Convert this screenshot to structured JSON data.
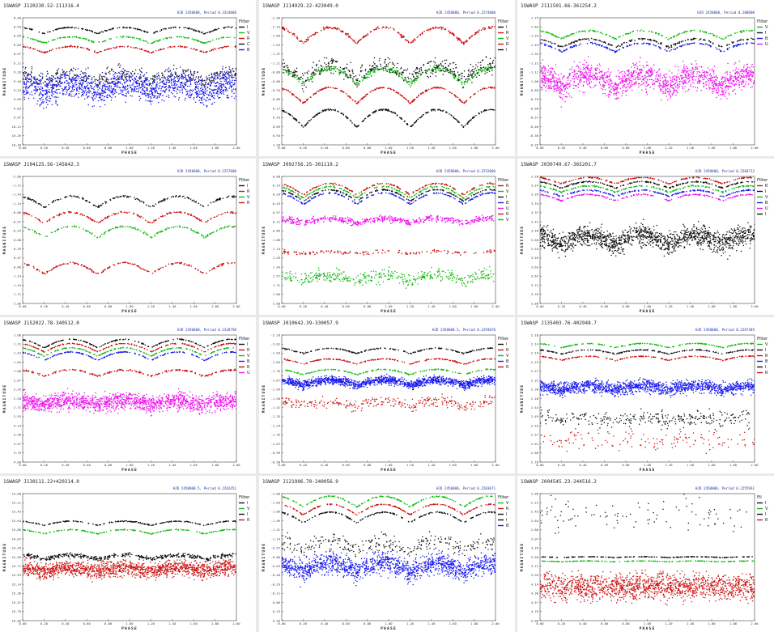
{
  "palette": {
    "I": "#111111",
    "R": "#cc1111",
    "V": "#11bb11",
    "B": "#1a1aee",
    "U": "#ee11ee",
    "C": "#111111"
  },
  "chart_data": [
    {
      "type": "scatter",
      "title": "1SWASP J120230.52-211316.4",
      "subtitle": "HJD 2450000, Period 0.3314000",
      "xlabel": "PHASE",
      "ylabel": "MAGNITUDE",
      "xlim": [
        0.0,
        2.0
      ],
      "ylim": [
        8.4,
        10.4
      ],
      "legend_title": "Filter",
      "legend_position": "right",
      "series": [
        {
          "name": "I",
          "center": 8.6,
          "amplitude": 0.1,
          "scatter": 0.01,
          "n": 200
        },
        {
          "name": "V",
          "center": 8.75,
          "amplitude": 0.1,
          "scatter": 0.01,
          "n": 200
        },
        {
          "name": "R",
          "center": 8.9,
          "amplitude": 0.1,
          "scatter": 0.01,
          "n": 200
        },
        {
          "name": "C",
          "center": 9.35,
          "amplitude": 0.15,
          "scatter": 0.12,
          "n": 400
        },
        {
          "name": "B",
          "center": 9.5,
          "amplitude": 0.15,
          "scatter": 0.22,
          "n": 1500
        }
      ]
    },
    {
      "type": "scatter",
      "title": "1SWASP J114929.22-423049.0",
      "subtitle": "HJD 2450000, Period 0.2274000",
      "xlabel": "PHASE",
      "ylabel": "MAGNITUDE",
      "xlim": [
        0.0,
        2.0
      ],
      "ylim": [
        -2.4,
        1.2
      ],
      "legend_title": "Filter",
      "legend_position": "right",
      "series": [
        {
          "name": "I",
          "center": 0.45,
          "amplitude": 0.5,
          "scatter": 0.02,
          "n": 300
        },
        {
          "name": "R",
          "center": -1.9,
          "amplitude": 0.45,
          "scatter": 0.04,
          "n": 300
        },
        {
          "name": "V",
          "center": -0.75,
          "amplitude": 0.45,
          "scatter": 0.08,
          "n": 400
        },
        {
          "name": "R",
          "center": -0.2,
          "amplitude": 0.45,
          "scatter": 0.02,
          "n": 300
        },
        {
          "name": "I",
          "center": -0.85,
          "amplitude": 0.4,
          "scatter": 0.25,
          "n": 450
        }
      ]
    },
    {
      "type": "scatter",
      "title": "1SWASP J111501.66-361254.2",
      "subtitle": "HJD 2450000, Period 0.200000",
      "xlabel": "PHASE",
      "ylabel": "MAGNITUDE",
      "xlim": [
        0.0,
        2.0
      ],
      "ylim": [
        -1.75,
        -0.25
      ],
      "legend_title": "Filter",
      "legend_position": "right",
      "series": [
        {
          "name": "V",
          "center": -1.55,
          "amplitude": 0.1,
          "scatter": 0.01,
          "n": 200
        },
        {
          "name": "I",
          "center": -1.45,
          "amplitude": 0.1,
          "scatter": 0.01,
          "n": 200
        },
        {
          "name": "B",
          "center": -1.4,
          "amplitude": 0.1,
          "scatter": 0.01,
          "n": 200
        },
        {
          "name": "U",
          "center": -1.0,
          "amplitude": 0.15,
          "scatter": 0.15,
          "n": 1500
        }
      ]
    },
    {
      "type": "scatter",
      "title": "1SWASP J104125.56-145842.3",
      "subtitle": "HJD 2450000, Period 0.2257000",
      "xlabel": "PHASE",
      "ylabel": "MAGNITUDE",
      "xlim": [
        0.0,
        2.0
      ],
      "ylim": [
        -2.0,
        2.0
      ],
      "legend_title": "Filter",
      "legend_position": "right",
      "series": [
        {
          "name": "I",
          "center": -1.2,
          "amplitude": 0.35,
          "scatter": 0.03,
          "n": 200
        },
        {
          "name": "R",
          "center": -0.7,
          "amplitude": 0.35,
          "scatter": 0.03,
          "n": 200
        },
        {
          "name": "V",
          "center": -0.25,
          "amplitude": 0.35,
          "scatter": 0.03,
          "n": 200
        },
        {
          "name": "R",
          "center": 0.9,
          "amplitude": 0.35,
          "scatter": 0.03,
          "n": 200
        }
      ]
    },
    {
      "type": "scatter",
      "title": "1SWASP J092756.25-301119.2",
      "subtitle": "HJD 2450000, Period 0.2252000",
      "xlabel": "PHASE",
      "ylabel": "MAGNITUDE",
      "xlim": [
        0.0,
        2.0
      ],
      "ylim": [
        0.0,
        2.0
      ],
      "legend_title": "Filter",
      "legend_position": "right",
      "series": [
        {
          "name": "R",
          "center": 0.2,
          "amplitude": 0.18,
          "scatter": 0.01,
          "n": 200
        },
        {
          "name": "V",
          "center": 0.25,
          "amplitude": 0.18,
          "scatter": 0.01,
          "n": 200
        },
        {
          "name": "I",
          "center": 0.3,
          "amplitude": 0.18,
          "scatter": 0.01,
          "n": 200
        },
        {
          "name": "B",
          "center": 0.35,
          "amplitude": 0.18,
          "scatter": 0.01,
          "n": 200
        },
        {
          "name": "U",
          "center": 0.7,
          "amplitude": 0.08,
          "scatter": 0.05,
          "n": 500
        },
        {
          "name": "R",
          "center": 1.2,
          "amplitude": 0.03,
          "scatter": 0.03,
          "n": 150
        },
        {
          "name": "V",
          "center": 1.6,
          "amplitude": 0.1,
          "scatter": 0.1,
          "n": 450
        }
      ]
    },
    {
      "type": "scatter",
      "title": "1SWASP J030749.67-365201.7",
      "subtitle": "HJD 2450000, Period 0.2260712",
      "xlabel": "PHASE",
      "ylabel": "MAGNITUDE",
      "xlim": [
        0.0,
        2.0
      ],
      "ylim": [
        3.2,
        3.8
      ],
      "legend_title": "Filter",
      "legend_position": "right",
      "series": [
        {
          "name": "R",
          "center": 3.22,
          "amplitude": 0.03,
          "scatter": 0.003,
          "n": 200
        },
        {
          "name": "I",
          "center": 3.24,
          "amplitude": 0.03,
          "scatter": 0.003,
          "n": 200
        },
        {
          "name": "V",
          "center": 3.26,
          "amplitude": 0.03,
          "scatter": 0.003,
          "n": 200
        },
        {
          "name": "B",
          "center": 3.28,
          "amplitude": 0.03,
          "scatter": 0.003,
          "n": 200
        },
        {
          "name": "U",
          "center": 3.3,
          "amplitude": 0.03,
          "scatter": 0.003,
          "n": 200
        },
        {
          "name": "I",
          "center": 3.5,
          "amplitude": 0.05,
          "scatter": 0.05,
          "n": 1500
        }
      ]
    },
    {
      "type": "scatter",
      "title": "1SWASP J152022.78-340512.0",
      "subtitle": "HJD 2450000, Period 0.2328790",
      "xlabel": "PHASE",
      "ylabel": "MAGNITUDE",
      "xlim": [
        0.0,
        2.0
      ],
      "ylim": [
        1.0,
        4.0
      ],
      "legend_title": "Filter",
      "legend_position": "right",
      "series": [
        {
          "name": "I",
          "center": 1.2,
          "amplitude": 0.2,
          "scatter": 0.01,
          "n": 200
        },
        {
          "name": "R",
          "center": 1.3,
          "amplitude": 0.2,
          "scatter": 0.01,
          "n": 200
        },
        {
          "name": "V",
          "center": 1.4,
          "amplitude": 0.2,
          "scatter": 0.01,
          "n": 200
        },
        {
          "name": "B",
          "center": 1.5,
          "amplitude": 0.2,
          "scatter": 0.01,
          "n": 200
        },
        {
          "name": "R",
          "center": 1.9,
          "amplitude": 0.15,
          "scatter": 0.02,
          "n": 200
        },
        {
          "name": "U",
          "center": 2.6,
          "amplitude": 0.1,
          "scatter": 0.2,
          "n": 1500
        }
      ]
    },
    {
      "type": "scatter",
      "title": "1SWASP J010642.39-330057.9",
      "subtitle": "HJD 2450000.5, Period 0.2293070",
      "xlabel": "PHASE",
      "ylabel": "MAGNITUDE",
      "xlim": [
        0.0,
        2.0
      ],
      "ylim": [
        -2.1,
        -0.9
      ],
      "legend_title": "Filter",
      "legend_position": "right",
      "series": [
        {
          "name": "I",
          "center": -1.95,
          "amplitude": 0.05,
          "scatter": 0.005,
          "n": 200
        },
        {
          "name": "R",
          "center": -1.85,
          "amplitude": 0.05,
          "scatter": 0.005,
          "n": 200
        },
        {
          "name": "V",
          "center": -1.75,
          "amplitude": 0.05,
          "scatter": 0.005,
          "n": 200
        },
        {
          "name": "B",
          "center": -1.65,
          "amplitude": 0.05,
          "scatter": 0.04,
          "n": 1500
        },
        {
          "name": "R",
          "center": -1.45,
          "amplitude": 0.05,
          "scatter": 0.05,
          "n": 300
        }
      ]
    },
    {
      "type": "scatter",
      "title": "1SWASP J135403.76-402948.7",
      "subtitle": "HJD 2450000, Period 0.2267385",
      "xlabel": "PHASE",
      "ylabel": "MAGNITUDE",
      "xlim": [
        0.0,
        2.0
      ],
      "ylim": [
        2.1,
        2.7
      ],
      "legend_title": "Filter",
      "legend_position": "right",
      "series": [
        {
          "name": "V",
          "center": 2.15,
          "amplitude": 0.02,
          "scatter": 0.002,
          "n": 200
        },
        {
          "name": "I",
          "center": 2.18,
          "amplitude": 0.02,
          "scatter": 0.002,
          "n": 200
        },
        {
          "name": "R",
          "center": 2.21,
          "amplitude": 0.02,
          "scatter": 0.002,
          "n": 200
        },
        {
          "name": "B",
          "center": 2.35,
          "amplitude": 0.02,
          "scatter": 0.03,
          "n": 1500
        },
        {
          "name": "I",
          "center": 2.5,
          "amplitude": 0.02,
          "scatter": 0.04,
          "n": 300
        },
        {
          "name": "R",
          "center": 2.6,
          "amplitude": 0.02,
          "scatter": 0.05,
          "n": 150
        }
      ]
    },
    {
      "type": "scatter",
      "title": "1SWASP J130111.22+420214.0",
      "subtitle": "HJD 2450000.5, Period 0.2262451",
      "xlabel": "PHASE",
      "ylabel": "MAGNITUDE",
      "xlim": [
        0.0,
        2.0
      ],
      "ylim": [
        13.0,
        16.0
      ],
      "legend_title": "Filter",
      "legend_position": "right",
      "series": [
        {
          "name": "I",
          "center": 13.7,
          "amplitude": 0.1,
          "scatter": 0.01,
          "n": 200
        },
        {
          "name": "V",
          "center": 13.9,
          "amplitude": 0.1,
          "scatter": 0.01,
          "n": 200
        },
        {
          "name": "I",
          "center": 14.5,
          "amplitude": 0.1,
          "scatter": 0.05,
          "n": 400
        },
        {
          "name": "R",
          "center": 14.8,
          "amplitude": 0.1,
          "scatter": 0.18,
          "n": 1500
        }
      ]
    },
    {
      "type": "scatter",
      "title": "1SWASP J121906.70-240056.9",
      "subtitle": "HJD 2450000, Period 0.2283071",
      "xlabel": "PHASE",
      "ylabel": "MAGNITUDE",
      "xlim": [
        0.0,
        2.0
      ],
      "ylim": [
        -2.0,
        0.4
      ],
      "legend_title": "Filter",
      "legend_position": "right",
      "series": [
        {
          "name": "V",
          "center": -1.85,
          "amplitude": 0.2,
          "scatter": 0.01,
          "n": 200
        },
        {
          "name": "R",
          "center": -1.7,
          "amplitude": 0.2,
          "scatter": 0.01,
          "n": 200
        },
        {
          "name": "I",
          "center": -1.55,
          "amplitude": 0.2,
          "scatter": 0.01,
          "n": 200
        },
        {
          "name": "I",
          "center": -1.0,
          "amplitude": 0.2,
          "scatter": 0.15,
          "n": 300
        },
        {
          "name": "B",
          "center": -0.6,
          "amplitude": 0.2,
          "scatter": 0.2,
          "n": 1500
        }
      ]
    },
    {
      "type": "scatter",
      "title": "1SWASP J004545.23-244516.2",
      "subtitle": "HJD 2450000, Period 0.2255961",
      "xlabel": "PHASE",
      "ylabel": "MAGNITUDE",
      "xlim": [
        0.0,
        2.0
      ],
      "ylim": [
        2.0,
        5.0
      ],
      "legend_title": "Fil",
      "legend_position": "right",
      "series": [
        {
          "name": "I",
          "center": 3.5,
          "amplitude": 0.02,
          "scatter": 0.005,
          "n": 200
        },
        {
          "name": "V",
          "center": 3.6,
          "amplitude": 0.02,
          "scatter": 0.005,
          "n": 200
        },
        {
          "name": "I",
          "center": 2.5,
          "amplitude": 0.02,
          "scatter": 0.4,
          "n": 100
        },
        {
          "name": "R",
          "center": 4.2,
          "amplitude": 0.02,
          "scatter": 0.3,
          "n": 1500
        }
      ]
    }
  ]
}
